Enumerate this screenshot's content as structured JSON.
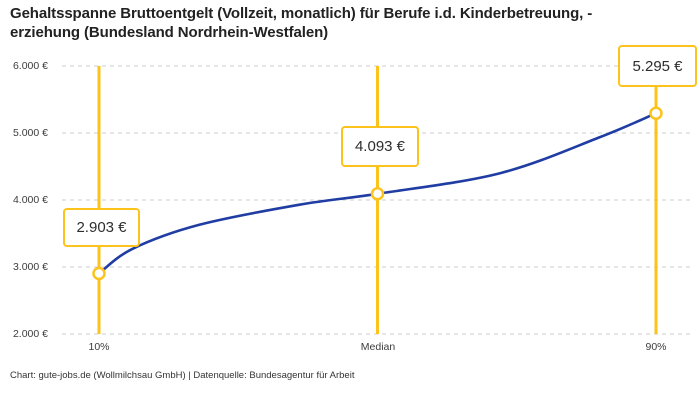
{
  "title": {
    "lines": [
      "Gehaltsspanne Bruttoentgelt (Vollzeit, monatlich) für Berufe i.d. Kinderbetreuung, -",
      "erziehung (Bundesland Nordrhein-Westfalen)"
    ]
  },
  "footer": {
    "text": "Chart: gute-jobs.de (Wollmilchsau GmbH) | Datenquelle: Bundesagentur für Arbeit"
  },
  "chart_data": {
    "type": "line",
    "title": "Gehaltsspanne Bruttoentgelt (Vollzeit, monatlich) für Berufe i.d. Kinderbetreuung, -erziehung (Bundesland Nordrhein-Westfalen)",
    "source": "Chart: gute-jobs.de (Wollmilchsau GmbH) | Datenquelle: Bundesagentur für Arbeit",
    "ylim": [
      2000,
      6000
    ],
    "y_ticks": [
      6000,
      5000,
      4000,
      3000,
      2000
    ],
    "y_tick_labels": [
      "6.000 €",
      "5.000 €",
      "4.000 €",
      "3.000 €",
      "2.000 €"
    ],
    "grid": true,
    "points": [
      {
        "label": "10%",
        "x_frac": 0.0,
        "value": 2903,
        "value_label": "2.903 €"
      },
      {
        "label": "Median",
        "x_frac": 0.5,
        "value": 4093,
        "value_label": "4.093 €"
      },
      {
        "label": "90%",
        "x_frac": 1.0,
        "value": 5295,
        "value_label": "5.295 €"
      }
    ],
    "curve_points": [
      {
        "x_frac": 0.0,
        "value": 2903
      },
      {
        "x_frac": 0.06,
        "value": 3270
      },
      {
        "x_frac": 0.18,
        "value": 3630
      },
      {
        "x_frac": 0.36,
        "value": 3930
      },
      {
        "x_frac": 0.5,
        "value": 4093
      },
      {
        "x_frac": 0.72,
        "value": 4400
      },
      {
        "x_frac": 0.9,
        "value": 4940
      },
      {
        "x_frac": 1.0,
        "value": 5295
      }
    ],
    "colors": {
      "curve": "#1f3da3",
      "marker_stroke": "#fcc31d",
      "marker_fill": "#ffffff",
      "percentile_line": "#fcc31d",
      "grid": "#cccccc"
    }
  }
}
